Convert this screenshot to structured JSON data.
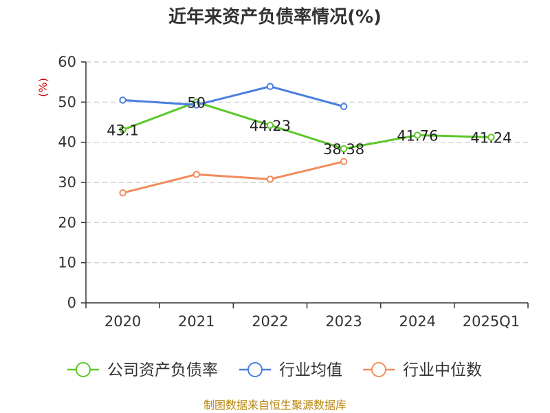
{
  "chart_data": {
    "type": "line",
    "title": "近年来资产负债率情况(%)",
    "ylabel": "(%)",
    "xlabel": "",
    "categories": [
      "2020",
      "2021",
      "2022",
      "2023",
      "2024",
      "2025Q1"
    ],
    "ylim": [
      0,
      60
    ],
    "yticks": [
      0,
      10,
      20,
      30,
      40,
      50,
      60
    ],
    "grid": true,
    "legend_position": "bottom",
    "series": [
      {
        "name": "公司资产负债率",
        "color": "#5cc82a",
        "values": [
          43.1,
          50,
          44.23,
          38.38,
          41.76,
          41.24
        ],
        "labels": [
          "43.1",
          "50",
          "44.23",
          "38.38",
          "41.76",
          "41.24"
        ]
      },
      {
        "name": "行业均值",
        "color": "#4a7fe0",
        "values": [
          50.5,
          49.3,
          53.9,
          48.9,
          null,
          null
        ]
      },
      {
        "name": "行业中位数",
        "color": "#f28c5c",
        "values": [
          27.4,
          32.0,
          30.8,
          35.2,
          null,
          null
        ]
      }
    ]
  },
  "source_note": "制图数据来自恒生聚源数据库"
}
